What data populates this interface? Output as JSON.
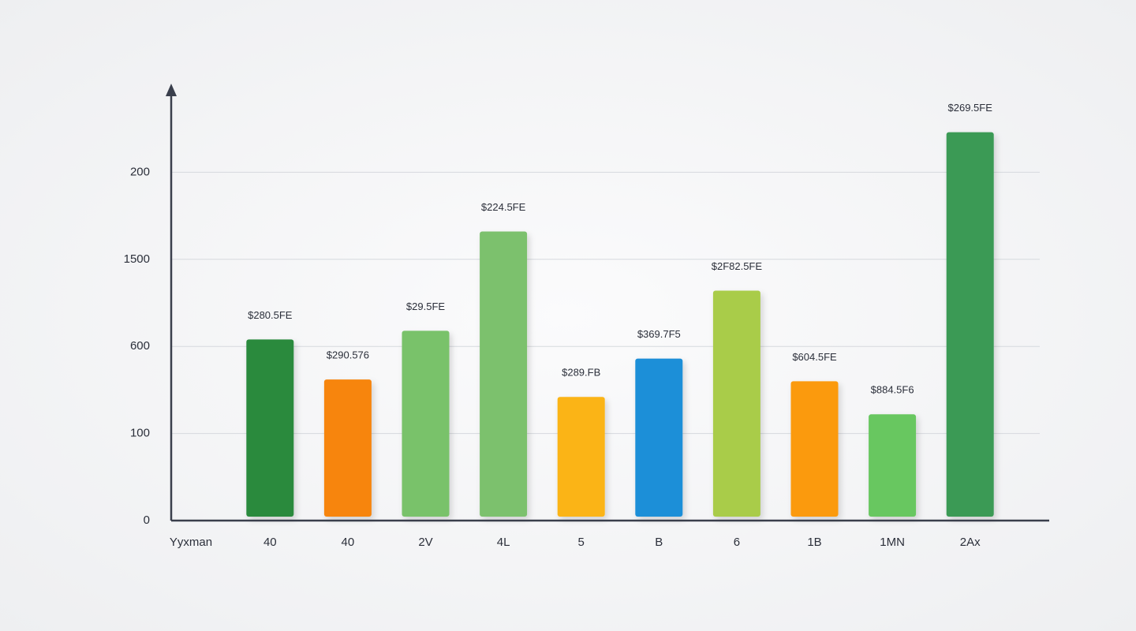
{
  "chart_data": {
    "type": "bar",
    "x_label": "Yyxman",
    "categories": [
      "40",
      "40",
      "2V",
      "4L",
      "5",
      "B",
      "6",
      "1B",
      "1MN",
      "2Ax"
    ],
    "values": [
      1040,
      810,
      1090,
      1660,
      710,
      930,
      1320,
      800,
      610,
      2230
    ],
    "value_labels": [
      "$280.5FE",
      "$290.576",
      "$29.5FE",
      "$224.5FE",
      "$289.FB",
      "$369.7F5",
      "$2F82.5FE",
      "$604.5FE",
      "$884.5F6",
      "$269.5FE"
    ],
    "colors": [
      "#2a8a3c",
      "#f7850c",
      "#79c26b",
      "#7bc16d",
      "#fbb414",
      "#1f8fd8",
      "#a9cc4a",
      "#fb9a0e",
      "#68c760",
      "#3a9a55"
    ],
    "ylim": [
      0,
      2500
    ],
    "yticks": [
      0,
      {
        "value": 500,
        "label": "100"
      },
      {
        "value": 1000,
        "label": "600"
      },
      1500,
      {
        "value": 2000,
        "label": "200"
      }
    ],
    "grid": true
  }
}
